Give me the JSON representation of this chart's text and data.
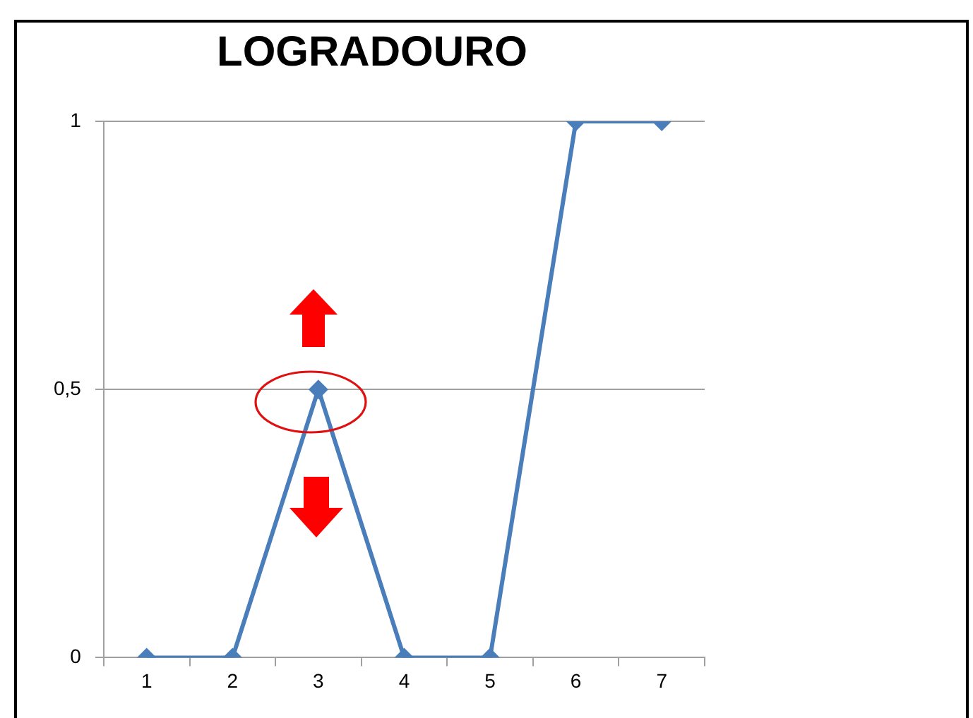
{
  "chart_data": {
    "type": "line",
    "title": "LOGRADOURO",
    "categories": [
      "1",
      "2",
      "3",
      "4",
      "5",
      "6",
      "7"
    ],
    "series": [
      {
        "color": "#4a7ebb",
        "values": [
          0,
          0,
          0.5,
          0,
          0,
          1,
          1
        ]
      }
    ],
    "ylim": [
      0,
      1
    ],
    "yticks": [
      0,
      {
        "value": 0.5,
        "label": "0,5"
      },
      1
    ],
    "grid": "y",
    "legend": false,
    "marker": "diamond",
    "line_style": "solid"
  }
}
